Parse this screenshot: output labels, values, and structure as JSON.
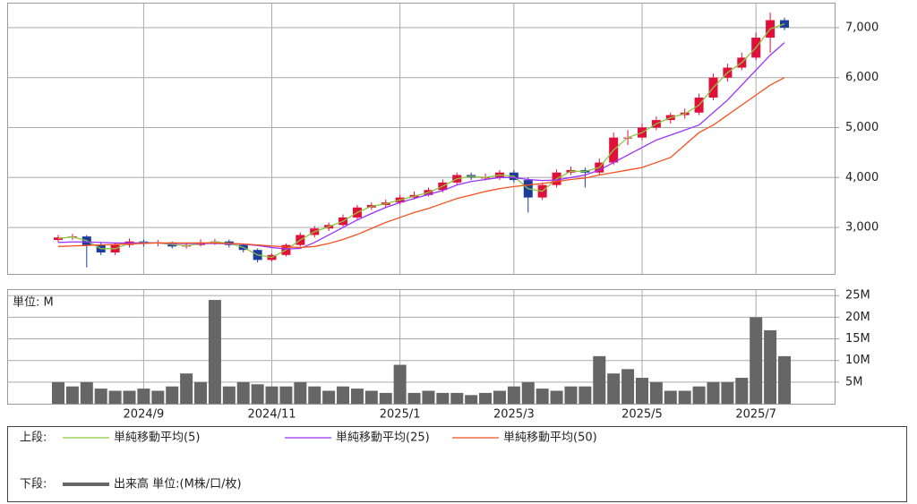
{
  "chart_data": [
    {
      "type": "candlestick",
      "legend_label": "上段:",
      "up_color": "#e0103a",
      "down_color": "#1e3c9c",
      "open": [
        2750,
        2800,
        2820,
        2650,
        2500,
        2650,
        2720,
        2680,
        2700,
        2620,
        2650,
        2700,
        2720,
        2650,
        2550,
        2350,
        2450,
        2650,
        2850,
        2980,
        3050,
        3200,
        3400,
        3450,
        3500,
        3600,
        3650,
        3750,
        3900,
        4050,
        4000,
        4000,
        4100,
        3950,
        3600,
        3850,
        4100,
        4150,
        4100,
        4300,
        4800,
        4800,
        5000,
        5150,
        5250,
        5300,
        5600,
        6000,
        6200,
        6400,
        6800,
        7150
      ],
      "high": [
        2850,
        2870,
        2850,
        2700,
        2700,
        2780,
        2760,
        2750,
        2720,
        2700,
        2760,
        2770,
        2760,
        2680,
        2580,
        2480,
        2680,
        2900,
        3030,
        3100,
        3260,
        3450,
        3500,
        3560,
        3650,
        3720,
        3800,
        3960,
        4100,
        4100,
        4080,
        4150,
        4150,
        4000,
        3900,
        4160,
        4220,
        4200,
        4380,
        4900,
        4950,
        5080,
        5220,
        5300,
        5380,
        5680,
        6080,
        6280,
        6500,
        6900,
        7300,
        7200
      ],
      "low": [
        2700,
        2750,
        2200,
        2450,
        2450,
        2600,
        2620,
        2620,
        2580,
        2580,
        2620,
        2650,
        2600,
        2500,
        2300,
        2320,
        2420,
        2620,
        2800,
        2930,
        3020,
        3150,
        3350,
        3400,
        3460,
        3560,
        3620,
        3700,
        3850,
        3950,
        3940,
        3950,
        3900,
        3300,
        3550,
        3800,
        4050,
        3800,
        4050,
        4250,
        4650,
        4750,
        4950,
        5080,
        5180,
        5250,
        5550,
        5920,
        6150,
        6350,
        6500,
        6950
      ],
      "close": [
        2800,
        2820,
        2650,
        2500,
        2650,
        2720,
        2680,
        2700,
        2620,
        2650,
        2700,
        2720,
        2650,
        2550,
        2350,
        2450,
        2650,
        2850,
        2980,
        3050,
        3200,
        3400,
        3450,
        3500,
        3600,
        3650,
        3750,
        3900,
        4050,
        4000,
        4000,
        4100,
        3950,
        3600,
        3850,
        4100,
        4150,
        4100,
        4300,
        4800,
        4800,
        5000,
        5150,
        5250,
        5300,
        5600,
        6000,
        6200,
        6400,
        6800,
        7150,
        7000
      ],
      "series": [
        {
          "name": "単純移動平均(5)",
          "color": "#8cc63f",
          "values": [
            2780,
            2810,
            2735,
            2575,
            2575,
            2685,
            2700,
            2690,
            2660,
            2635,
            2675,
            2710,
            2685,
            2600,
            2450,
            2400,
            2550,
            2750,
            2915,
            3015,
            3125,
            3300,
            3425,
            3475,
            3550,
            3625,
            3700,
            3825,
            3975,
            4025,
            4000,
            4050,
            4025,
            3775,
            3725,
            3975,
            4125,
            4125,
            4200,
            4550,
            4800,
            4900,
            5075,
            5200,
            5275,
            5450,
            5800,
            6100,
            6300,
            6600,
            6975,
            7075
          ]
        },
        {
          "name": "単純移動平均(25)",
          "color": "#9b30ff",
          "values": [
            2700,
            2710,
            2710,
            2700,
            2690,
            2690,
            2690,
            2690,
            2680,
            2680,
            2680,
            2680,
            2675,
            2665,
            2640,
            2600,
            2570,
            2580,
            2700,
            2850,
            3000,
            3150,
            3280,
            3400,
            3500,
            3580,
            3660,
            3740,
            3850,
            3920,
            3960,
            4000,
            4000,
            3960,
            3940,
            3950,
            4000,
            4050,
            4150,
            4300,
            4450,
            4600,
            4750,
            4850,
            4950,
            5050,
            5300,
            5550,
            5850,
            6150,
            6450,
            6700
          ]
        },
        {
          "name": "単純移動平均(50)",
          "color": "#f4511e",
          "values": [
            2620,
            2630,
            2640,
            2650,
            2660,
            2670,
            2680,
            2690,
            2690,
            2690,
            2690,
            2690,
            2680,
            2670,
            2650,
            2630,
            2610,
            2600,
            2620,
            2680,
            2760,
            2860,
            2980,
            3100,
            3200,
            3300,
            3380,
            3480,
            3580,
            3650,
            3720,
            3780,
            3820,
            3850,
            3880,
            3920,
            3960,
            3990,
            4050,
            4100,
            4150,
            4200,
            4300,
            4400,
            4650,
            4900,
            5050,
            5250,
            5450,
            5650,
            5850,
            6000
          ]
        }
      ],
      "ylim": [
        2070,
        7500
      ],
      "yticks": [
        {
          "value": 3000,
          "label": "3,000"
        },
        {
          "value": 4000,
          "label": "4,000"
        },
        {
          "value": 5000,
          "label": "5,000"
        },
        {
          "value": 6000,
          "label": "6,000"
        },
        {
          "value": 7000,
          "label": "7,000"
        }
      ],
      "grid": true
    },
    {
      "type": "bar",
      "legend_label": "下段:",
      "unit_label": "単位: M",
      "categories": [
        null,
        null,
        null,
        null,
        null,
        null,
        "2024/9",
        null,
        null,
        null,
        null,
        null,
        null,
        null,
        null,
        "2024/11",
        null,
        null,
        null,
        null,
        null,
        null,
        null,
        null,
        "2025/1",
        null,
        null,
        null,
        null,
        null,
        null,
        null,
        "2025/3",
        null,
        null,
        null,
        null,
        null,
        null,
        null,
        null,
        "2025/5",
        null,
        null,
        null,
        null,
        null,
        null,
        null,
        "2025/7",
        null,
        null
      ],
      "series": [
        {
          "name": "出来高 単位:(M株/口/枚)",
          "color": "#666666",
          "values": [
            5,
            4,
            5,
            3.5,
            3,
            3,
            3.5,
            3,
            4,
            7,
            5,
            24,
            4,
            5,
            4.5,
            4,
            4,
            5,
            4,
            3,
            4,
            3.5,
            3,
            2.5,
            9,
            2.5,
            3,
            2.5,
            2.5,
            2,
            2.5,
            3,
            4,
            5,
            3.5,
            3,
            4,
            4,
            11,
            7,
            8,
            6,
            5,
            3,
            3,
            4,
            5,
            5,
            6,
            20,
            17,
            11
          ]
        }
      ],
      "ylim": [
        0,
        26.5
      ],
      "yticks": [
        {
          "value": 5,
          "label": "5M"
        },
        {
          "value": 10,
          "label": "10M"
        },
        {
          "value": 15,
          "label": "15M"
        },
        {
          "value": 20,
          "label": "20M"
        },
        {
          "value": 25,
          "label": "25M"
        }
      ],
      "grid": true
    }
  ]
}
